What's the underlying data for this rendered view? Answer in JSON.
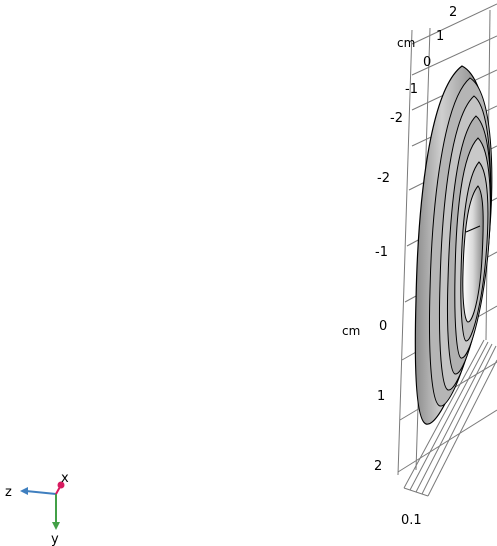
{
  "axes": {
    "unit_top": "cm",
    "unit_left": "cm",
    "top_ticks": [
      "2",
      "1",
      "0",
      "-1",
      "-2"
    ],
    "vertical_ticks": [
      "-2",
      "-1",
      "0",
      "1",
      "2"
    ],
    "depth_tick": "0.1"
  },
  "triad": {
    "x_label": "x",
    "y_label": "y",
    "z_label": "z",
    "x_color": "#d81b60",
    "y_color": "#43a047",
    "z_color": "#3f7fbf"
  },
  "model": {
    "ring_count": 6,
    "surface_color": "#a9a9a9",
    "edge_color": "#000000"
  }
}
